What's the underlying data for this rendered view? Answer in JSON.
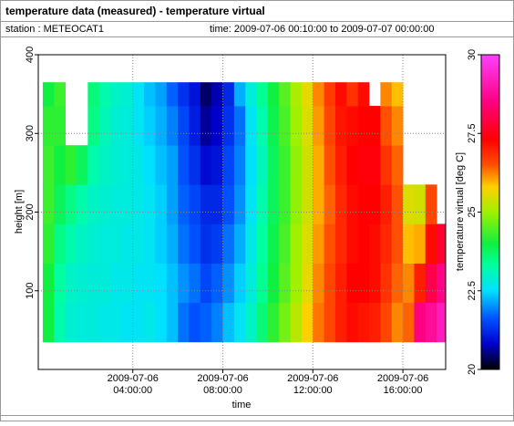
{
  "chart_data": {
    "type": "heatmap",
    "title": "temperature data (measured) - temperature virtual",
    "station": "station : METEOCAT1",
    "time_range": "time: 2009-07-06 00:10:00 to 2009-07-07 00:00:00",
    "x_label": "time",
    "y_label": "height [m]",
    "colorbar_label": "temperature virtual [deg C]",
    "xlim": [
      -0.2,
      17.9
    ],
    "ylim": [
      0,
      400
    ],
    "zlim": [
      20,
      30
    ],
    "xticks": [
      {
        "value": 4,
        "label": "2009-07-06\n04:00:00"
      },
      {
        "value": 8,
        "label": "2009-07-06\n08:00:00"
      },
      {
        "value": 12,
        "label": "2009-07-06\n12:00:00"
      },
      {
        "value": 16,
        "label": "2009-07-06\n16:00:00"
      }
    ],
    "yticks": [
      100,
      200,
      300,
      400
    ],
    "zticks": [
      20,
      22.5,
      25,
      27.5,
      30
    ],
    "grid": true,
    "colormap": [
      [
        20,
        "#000000"
      ],
      [
        20.8,
        "#0000cc"
      ],
      [
        21.6,
        "#0050ff"
      ],
      [
        22.5,
        "#00e0ff"
      ],
      [
        23.3,
        "#00ffa0"
      ],
      [
        24,
        "#10f040"
      ],
      [
        25,
        "#a0f000"
      ],
      [
        25.8,
        "#ffd000"
      ],
      [
        26.5,
        "#ff5000"
      ],
      [
        27.3,
        "#ff0000"
      ],
      [
        28.5,
        "#ff0080"
      ],
      [
        30,
        "#ff40ff"
      ]
    ],
    "x_bins": [
      0,
      0.5,
      1,
      1.5,
      2,
      2.5,
      3,
      3.5,
      4,
      4.5,
      5,
      5.5,
      6,
      6.5,
      7,
      7.5,
      8,
      8.5,
      9,
      9.5,
      10,
      10.5,
      11,
      11.5,
      12,
      12.5,
      13,
      13.5,
      14,
      14.5,
      15,
      15.5,
      16,
      16.5,
      17,
      17.5,
      17.9
    ],
    "y_bins": [
      35,
      85,
      135,
      185,
      235,
      285,
      335,
      365
    ],
    "values": [
      [
        24,
        24,
        24.2,
        24.3,
        24.3,
        24.2,
        24
      ],
      [
        23.2,
        23.3,
        23.5,
        23.8,
        24,
        24.2,
        24.3
      ],
      [
        22.9,
        23,
        23.2,
        23.5,
        24.2,
        null,
        null
      ],
      [
        22.8,
        22.9,
        23,
        23.2,
        23.8,
        null,
        null
      ],
      [
        22.8,
        22.8,
        22.9,
        23,
        23.2,
        23.5,
        23.6
      ],
      [
        22.7,
        22.8,
        22.8,
        22.9,
        23,
        23.1,
        23.2
      ],
      [
        22.7,
        22.7,
        22.8,
        22.8,
        22.9,
        22.9,
        23
      ],
      [
        22.6,
        22.7,
        22.7,
        22.8,
        22.8,
        22.8,
        22.9
      ],
      [
        22.6,
        22.6,
        22.7,
        22.7,
        22.7,
        22.6,
        22.6
      ],
      [
        22.7,
        22.6,
        22.6,
        22.6,
        22.5,
        22.4,
        22.3
      ],
      [
        22.5,
        22.5,
        22.4,
        22.4,
        22.3,
        22.2,
        22.1
      ],
      [
        22.3,
        22.3,
        22.2,
        22.1,
        22.1,
        21.9,
        21.7
      ],
      [
        21.8,
        22,
        21.8,
        21.7,
        21.6,
        21.5,
        21.3
      ],
      [
        21.6,
        21.8,
        21.6,
        21.5,
        21.3,
        21.1,
        21
      ],
      [
        21.7,
        21.5,
        21.3,
        21.2,
        20.9,
        20.6,
        20.4
      ],
      [
        21.9,
        21.7,
        21.4,
        21.2,
        21,
        20.8,
        20.7
      ],
      [
        22.3,
        22,
        21.8,
        21.6,
        21.5,
        21.3,
        21.2
      ],
      [
        22.6,
        22.4,
        22.2,
        22,
        21.9,
        21.8,
        22.2
      ],
      [
        23,
        22.8,
        22.7,
        22.6,
        22.5,
        22.6,
        22.8
      ],
      [
        23.6,
        23.4,
        23.3,
        23.2,
        23.1,
        23.2,
        23.4
      ],
      [
        24.2,
        24,
        23.9,
        23.8,
        23.8,
        23.9,
        24
      ],
      [
        24.7,
        24.5,
        24.4,
        24.3,
        24.3,
        24.4,
        24.5
      ],
      [
        25.2,
        25,
        25,
        24.9,
        24.9,
        25,
        25.1
      ],
      [
        25.8,
        25.6,
        25.5,
        25.4,
        25.4,
        25.5,
        25.6
      ],
      [
        26.3,
        26.2,
        26.1,
        26,
        26,
        26.1,
        26.2
      ],
      [
        26.6,
        26.6,
        26.5,
        26.4,
        26.5,
        26.6,
        26.7
      ],
      [
        27,
        27,
        26.9,
        26.9,
        27,
        27.1,
        27.2
      ],
      [
        27.2,
        27.3,
        27.2,
        27.2,
        27.3,
        27.2,
        26.8
      ],
      [
        27.1,
        27.3,
        27.3,
        27.3,
        27.4,
        27.3,
        27.2
      ],
      [
        27,
        27.2,
        27.2,
        27.3,
        27.4,
        27.3,
        null
      ],
      [
        26.6,
        26.8,
        26.9,
        27,
        26.8,
        26.5,
        26.2
      ],
      [
        26.2,
        26.4,
        26.5,
        26.5,
        26.4,
        26.2,
        25.9
      ],
      [
        26.4,
        26.2,
        25.9,
        25.5,
        null,
        null,
        null
      ],
      [
        28.5,
        27,
        26,
        25.4,
        null,
        null,
        null
      ],
      [
        28.8,
        28,
        27.2,
        26.6,
        null,
        null,
        null
      ],
      [
        29.2,
        28.6,
        27.8,
        null,
        null,
        null,
        null
      ]
    ]
  }
}
